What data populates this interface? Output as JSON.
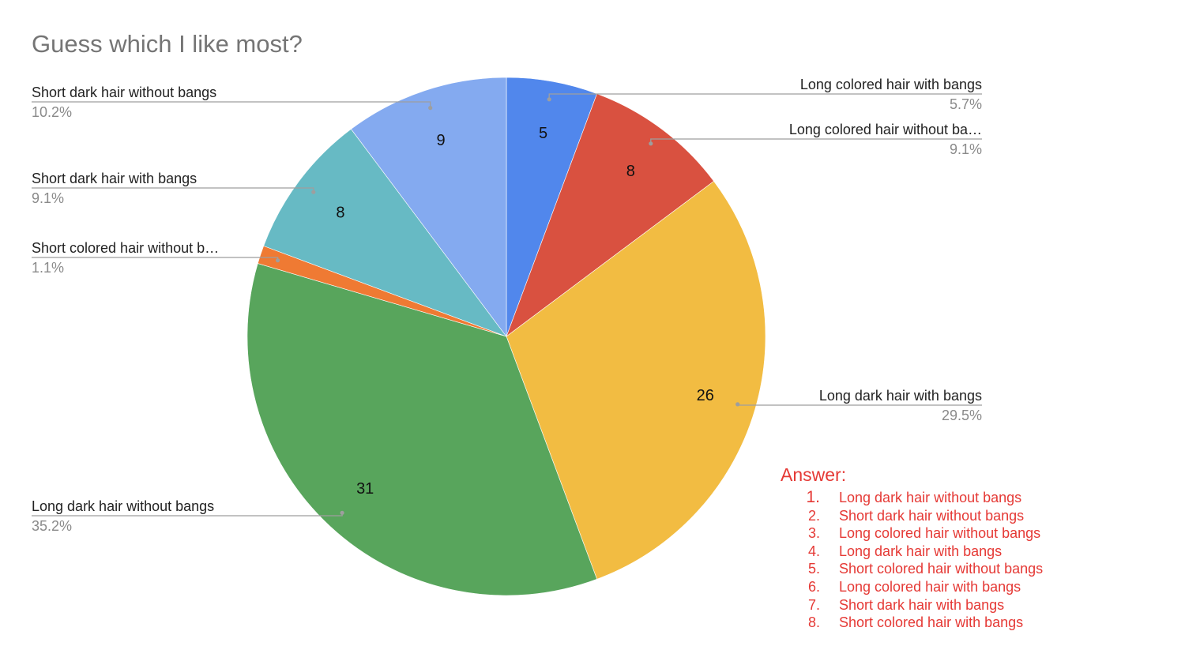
{
  "chart_data": {
    "type": "pie",
    "title": "Guess which I like most?",
    "slices": [
      {
        "name": "Long colored hair with bangs",
        "display_name": "Long colored hair with bangs",
        "value": 5,
        "percent": "5.7%",
        "color": "#5187EC"
      },
      {
        "name": "Long colored hair without bangs",
        "display_name": "Long colored hair without ba…",
        "value": 8,
        "percent": "9.1%",
        "color": "#D95140"
      },
      {
        "name": "Long dark hair with bangs",
        "display_name": "Long dark hair with bangs",
        "value": 26,
        "percent": "29.5%",
        "color": "#F2BC42"
      },
      {
        "name": "Long dark hair without bangs",
        "display_name": "Long dark hair without bangs",
        "value": 31,
        "percent": "35.2%",
        "color": "#58A55C"
      },
      {
        "name": "Short colored hair without bangs",
        "display_name": "Short colored hair without b…",
        "value": 1,
        "percent": "1.1%",
        "color": "#EF7A33"
      },
      {
        "name": "Short dark hair with bangs",
        "display_name": "Short dark hair with bangs",
        "value": 8,
        "percent": "9.1%",
        "color": "#67BAC4"
      },
      {
        "name": "Short dark hair without bangs",
        "display_name": "Short dark hair without bangs",
        "value": 9,
        "percent": "10.2%",
        "color": "#84AAF0"
      }
    ],
    "start_angle": "12 o'clock",
    "direction": "clockwise",
    "legend": "labels with leader lines"
  },
  "answer": {
    "heading": "Answer:",
    "items": [
      {
        "num": "1.",
        "label": "Long dark hair without bangs"
      },
      {
        "num": "2.",
        "label": "Short dark hair without bangs"
      },
      {
        "num": "3.",
        "label": "Long colored hair without bangs"
      },
      {
        "num": "4.",
        "label": "Long dark hair with bangs"
      },
      {
        "num": "5.",
        "label": "Short colored hair without bangs"
      },
      {
        "num": "6.",
        "label": "Long colored hair with bangs"
      },
      {
        "num": "7.",
        "label": "Short dark hair with bangs"
      },
      {
        "num": "8.",
        "label": "Short colored hair with bangs"
      }
    ],
    "color": "#E53935"
  }
}
